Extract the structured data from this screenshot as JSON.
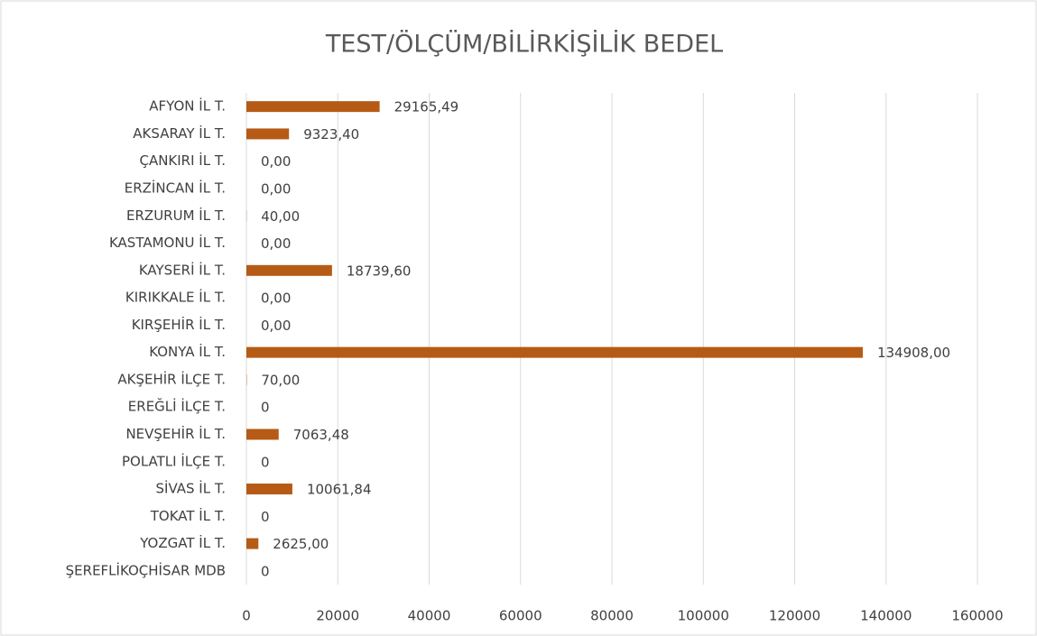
{
  "chart_data": {
    "type": "hbar",
    "title": "TEST/ÖLÇÜM/BİLİRKİŞİLİK BEDEL",
    "categories": [
      "AFYON İL T.",
      "AKSARAY İL T.",
      "ÇANKIRI İL T.",
      "ERZİNCAN İL T.",
      "ERZURUM İL T.",
      "KASTAMONU İL T.",
      "KAYSERİ İL T.",
      "KIRIKKALE İL T.",
      "KIRŞEHİR İL T.",
      "KONYA İL T.",
      "AKŞEHİR İLÇE T.",
      "EREĞLİ İLÇE T.",
      "NEVŞEHİR İL T.",
      "POLATLI İLÇE T.",
      "SİVAS İL T.",
      "TOKAT İL T.",
      "YOZGAT İL T.",
      "ŞEREFLİKOÇHİSAR MDB"
    ],
    "values": [
      29165.49,
      9323.4,
      0,
      0,
      40,
      0,
      18739.6,
      0,
      0,
      134908,
      70,
      0,
      7063.48,
      0,
      10061.84,
      0,
      2625,
      0
    ],
    "value_labels": [
      "29165,49",
      "9323,40",
      "0,00",
      "0,00",
      "40,00",
      "0,00",
      "18739,60",
      "0,00",
      "0,00",
      "134908,00",
      "70,00",
      "0",
      "7063,48",
      "0",
      "10061,84",
      "0",
      "2625,00",
      "0"
    ],
    "color": "#b65b16",
    "xlim": [
      0,
      160000
    ],
    "xticks": [
      0,
      20000,
      40000,
      60000,
      80000,
      100000,
      120000,
      140000,
      160000
    ],
    "grid": true
  }
}
